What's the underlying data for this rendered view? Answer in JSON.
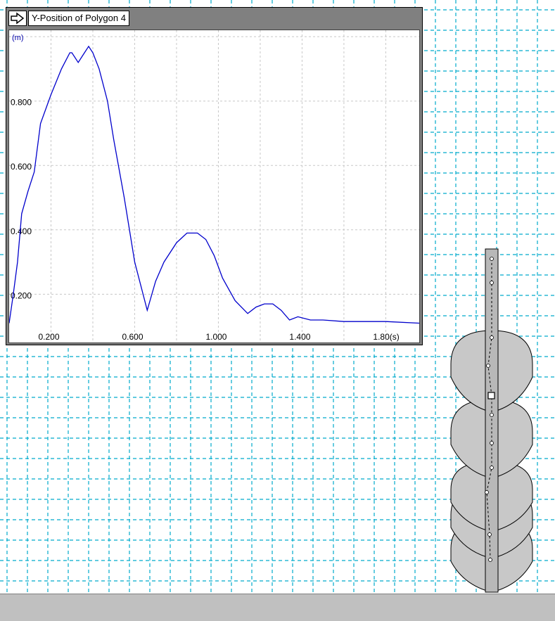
{
  "chart_window": {
    "title": "Y-Position of Polygon 4",
    "icon": "arrow-right-icon"
  },
  "chart_data": {
    "type": "line",
    "title": "Y-Position of Polygon 4",
    "xlabel": "(s)",
    "ylabel": "(m)",
    "xlim": [
      0,
      1.96
    ],
    "ylim": [
      0.05,
      1.02
    ],
    "x_ticks": [
      {
        "value": 0.2,
        "label": "0.200"
      },
      {
        "value": 0.6,
        "label": "0.600"
      },
      {
        "value": 1.0,
        "label": "1.000"
      },
      {
        "value": 1.4,
        "label": "1.400"
      },
      {
        "value": 1.8,
        "label": "1.80(s)"
      }
    ],
    "y_ticks": [
      {
        "value": 0.2,
        "label": "0.200"
      },
      {
        "value": 0.4,
        "label": "0.400"
      },
      {
        "value": 0.6,
        "label": "0.600"
      },
      {
        "value": 0.8,
        "label": "0.800"
      }
    ],
    "x_grid": [
      0.2,
      0.4,
      0.6,
      0.8,
      1.0,
      1.2,
      1.4,
      1.6,
      1.8
    ],
    "y_grid": [
      0.2,
      0.4,
      0.6,
      0.8,
      1.0
    ],
    "grid": true,
    "line_color": "#0000cc",
    "series": [
      {
        "x": [
          0.0,
          0.02,
          0.04,
          0.06,
          0.09,
          0.12,
          0.15,
          0.2,
          0.25,
          0.29,
          0.3,
          0.33,
          0.35,
          0.38,
          0.4,
          0.43,
          0.47,
          0.5,
          0.55,
          0.6,
          0.66,
          0.7,
          0.74,
          0.8,
          0.85,
          0.9,
          0.94,
          0.98,
          1.02,
          1.08,
          1.14,
          1.18,
          1.22,
          1.26,
          1.3,
          1.34,
          1.38,
          1.44,
          1.5,
          1.6,
          1.7,
          1.8,
          1.96
        ],
        "y": [
          0.11,
          0.2,
          0.3,
          0.45,
          0.52,
          0.58,
          0.73,
          0.82,
          0.9,
          0.95,
          0.95,
          0.92,
          0.94,
          0.97,
          0.95,
          0.9,
          0.8,
          0.68,
          0.5,
          0.3,
          0.15,
          0.24,
          0.3,
          0.36,
          0.39,
          0.39,
          0.37,
          0.32,
          0.25,
          0.18,
          0.14,
          0.16,
          0.17,
          0.17,
          0.15,
          0.12,
          0.13,
          0.12,
          0.12,
          0.115,
          0.115,
          0.115,
          0.11
        ]
      }
    ]
  },
  "scene": {
    "grid_color": "#00aacc",
    "body_fill": "#c8c8c8",
    "ground_fill": "#c0c0c0"
  }
}
